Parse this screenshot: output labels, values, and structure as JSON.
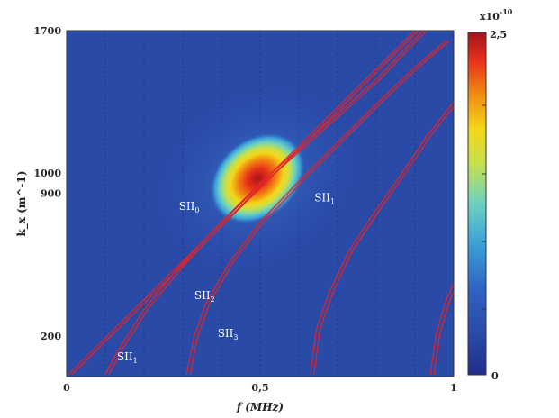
{
  "chart_data": {
    "type": "heatmap",
    "xlabel": "f (MHz)",
    "ylabel": "k_x (m^-1)",
    "xlim": [
      0,
      1
    ],
    "ylim": [
      0,
      1700
    ],
    "x_ticks": [
      "0",
      "0,5",
      "1"
    ],
    "y_ticks": [
      "1700",
      "1000",
      "900",
      "200"
    ],
    "grid": "vertical-dotted",
    "hotspot": {
      "f": 0.48,
      "k": 1000,
      "peak": 2.5
    },
    "colorbar": {
      "min_label": "0",
      "max_label": "2,5",
      "exponent_base": "x10",
      "exponent_power": "-10",
      "colormap": [
        "#1f2e8c",
        "#2f63c2",
        "#3aa0d8",
        "#6cd0c0",
        "#c8e04a",
        "#f4d619",
        "#f08a12",
        "#e8301a",
        "#a3141a"
      ]
    },
    "modes": [
      {
        "name": "SII",
        "sub": "0",
        "points": [
          [
            0.005,
            10
          ],
          [
            0.9,
            1700
          ]
        ]
      },
      {
        "name": "SII",
        "sub": "1",
        "points": [
          [
            0.1,
            10
          ],
          [
            0.13,
            120
          ],
          [
            0.2,
            330
          ],
          [
            0.3,
            560
          ],
          [
            0.4,
            760
          ],
          [
            0.5,
            950
          ],
          [
            0.6,
            1120
          ],
          [
            0.7,
            1290
          ],
          [
            0.8,
            1460
          ],
          [
            0.92,
            1700
          ]
        ]
      },
      {
        "name": "SII",
        "sub": "2",
        "points": [
          [
            0.31,
            10
          ],
          [
            0.33,
            200
          ],
          [
            0.36,
            360
          ],
          [
            0.42,
            560
          ],
          [
            0.5,
            760
          ],
          [
            0.6,
            960
          ],
          [
            0.7,
            1150
          ],
          [
            0.8,
            1340
          ],
          [
            0.9,
            1520
          ],
          [
            0.98,
            1650
          ]
        ]
      },
      {
        "name": "SII",
        "sub": "3",
        "points": [
          [
            0.63,
            10
          ],
          [
            0.645,
            230
          ],
          [
            0.68,
            420
          ],
          [
            0.73,
            620
          ],
          [
            0.8,
            820
          ],
          [
            0.87,
            1010
          ],
          [
            0.93,
            1180
          ],
          [
            1.0,
            1350
          ]
        ]
      },
      {
        "name": "SII",
        "sub": "4",
        "points": [
          [
            0.94,
            10
          ],
          [
            0.955,
            210
          ],
          [
            0.98,
            370
          ],
          [
            1.0,
            460
          ]
        ]
      }
    ],
    "mode_labels": [
      {
        "text": "SII",
        "sub": "0",
        "f": 0.29,
        "k": 820
      },
      {
        "text": "SII",
        "sub": "1",
        "f": 0.13,
        "k": 80
      },
      {
        "text": "SII",
        "sub": "2",
        "f": 0.33,
        "k": 380
      },
      {
        "text": "SII",
        "sub": "3",
        "f": 0.39,
        "k": 195
      },
      {
        "text": "SII",
        "sub": "1",
        "f": 0.64,
        "k": 860
      }
    ]
  }
}
